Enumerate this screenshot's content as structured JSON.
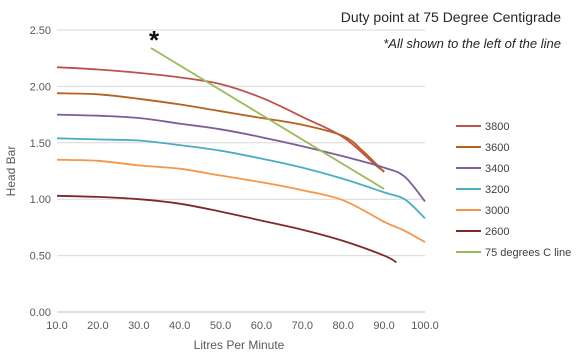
{
  "chart_data": {
    "type": "line",
    "title": "Duty point at 75 Degree Centigrade",
    "subtitle": "*All shown to the left of the line",
    "marker_annotation": "*",
    "xlabel": "Litres Per Minute",
    "ylabel": "Head Bar",
    "xlim": [
      10.0,
      100.0
    ],
    "ylim": [
      0.0,
      2.5
    ],
    "x_ticks": [
      "10.0",
      "20.0",
      "30.0",
      "40.0",
      "50.0",
      "60.0",
      "70.0",
      "80.0",
      "90.0",
      "100.0"
    ],
    "y_ticks": [
      "0.00",
      "0.50",
      "1.00",
      "1.50",
      "2.00",
      "2.50"
    ],
    "grid": "horizontal",
    "legend_position": "right",
    "series": [
      {
        "name": "3800",
        "color": "#c0504d",
        "points": [
          [
            10,
            2.17
          ],
          [
            20,
            2.15
          ],
          [
            30,
            2.12
          ],
          [
            40,
            2.08
          ],
          [
            50,
            2.02
          ],
          [
            60,
            1.9
          ],
          [
            70,
            1.73
          ],
          [
            80,
            1.55
          ],
          [
            88,
            1.3
          ],
          [
            90,
            1.25
          ]
        ]
      },
      {
        "name": "3600",
        "color": "#b8601d",
        "points": [
          [
            10,
            1.94
          ],
          [
            20,
            1.93
          ],
          [
            30,
            1.89
          ],
          [
            40,
            1.84
          ],
          [
            50,
            1.78
          ],
          [
            60,
            1.72
          ],
          [
            70,
            1.66
          ],
          [
            80,
            1.56
          ],
          [
            85,
            1.42
          ],
          [
            90,
            1.24
          ]
        ]
      },
      {
        "name": "3400",
        "color": "#7c5e99",
        "points": [
          [
            10,
            1.75
          ],
          [
            20,
            1.74
          ],
          [
            30,
            1.72
          ],
          [
            40,
            1.67
          ],
          [
            50,
            1.62
          ],
          [
            60,
            1.55
          ],
          [
            70,
            1.47
          ],
          [
            80,
            1.38
          ],
          [
            90,
            1.28
          ],
          [
            95,
            1.2
          ],
          [
            100,
            0.98
          ]
        ]
      },
      {
        "name": "3200",
        "color": "#4bacc6",
        "points": [
          [
            10,
            1.54
          ],
          [
            20,
            1.53
          ],
          [
            30,
            1.52
          ],
          [
            40,
            1.48
          ],
          [
            50,
            1.43
          ],
          [
            60,
            1.36
          ],
          [
            70,
            1.28
          ],
          [
            80,
            1.18
          ],
          [
            90,
            1.06
          ],
          [
            95,
            1.0
          ],
          [
            100,
            0.83
          ]
        ]
      },
      {
        "name": "3000",
        "color": "#f79646",
        "points": [
          [
            10,
            1.35
          ],
          [
            20,
            1.34
          ],
          [
            30,
            1.3
          ],
          [
            40,
            1.27
          ],
          [
            50,
            1.21
          ],
          [
            60,
            1.15
          ],
          [
            70,
            1.08
          ],
          [
            80,
            0.99
          ],
          [
            90,
            0.8
          ],
          [
            95,
            0.72
          ],
          [
            100,
            0.62
          ]
        ]
      },
      {
        "name": "2600",
        "color": "#7f2a2a",
        "points": [
          [
            10,
            1.03
          ],
          [
            20,
            1.02
          ],
          [
            30,
            1.0
          ],
          [
            40,
            0.96
          ],
          [
            50,
            0.89
          ],
          [
            60,
            0.81
          ],
          [
            70,
            0.73
          ],
          [
            80,
            0.63
          ],
          [
            90,
            0.5
          ],
          [
            93,
            0.44
          ]
        ]
      },
      {
        "name": "75 degrees C line",
        "color": "#9bbb59",
        "points": [
          [
            33,
            2.34
          ],
          [
            90,
            1.09
          ]
        ]
      }
    ]
  }
}
